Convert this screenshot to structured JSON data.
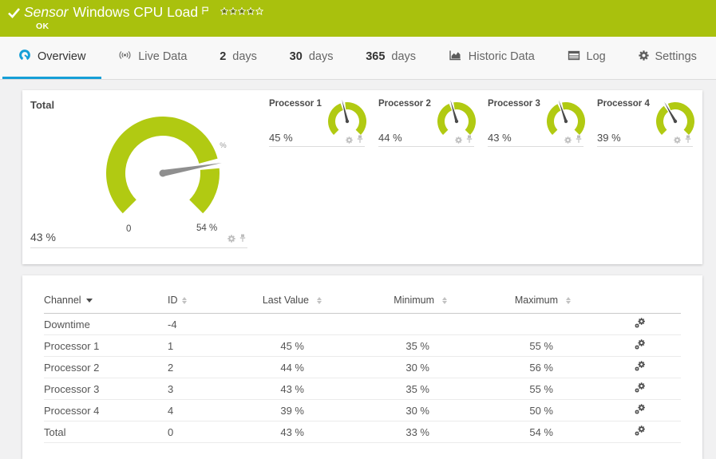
{
  "colors": {
    "header_green": "#a9c10d",
    "gauge_green": "#b1ca12",
    "accent_blue": "#169fd7",
    "needle_gray": "#8f8f8f",
    "needle_dark": "#4a4a4a"
  },
  "header": {
    "kicker": "Sensor",
    "title": "Windows CPU Load",
    "status": "OK",
    "priority_filled": 4,
    "priority_total": 5
  },
  "tabs": [
    {
      "id": "overview",
      "label": "Overview",
      "icon": "gauge",
      "active": true
    },
    {
      "id": "live-data",
      "label": "Live Data",
      "icon": "live",
      "active": false
    },
    {
      "id": "2-days",
      "prefix": "2",
      "label": "days",
      "active": false
    },
    {
      "id": "30-days",
      "prefix": "30",
      "label": "days",
      "active": false
    },
    {
      "id": "365-days",
      "prefix": "365",
      "label": "days",
      "active": false
    },
    {
      "id": "historic-data",
      "label": "Historic Data",
      "icon": "chart-area",
      "active": false
    },
    {
      "id": "log",
      "label": "Log",
      "icon": "log",
      "active": false
    },
    {
      "id": "settings",
      "label": "Settings",
      "icon": "gear",
      "active": false
    }
  ],
  "gauges": {
    "total": {
      "label": "Total",
      "value": 43,
      "value_label": "43 %",
      "scale_min": 0,
      "scale_max": 54,
      "min_label": "0",
      "max_label": "54 %",
      "unit": "%"
    },
    "processors": [
      {
        "label": "Processor 1",
        "value": 45,
        "value_label": "45 %",
        "scale_max": 100
      },
      {
        "label": "Processor 2",
        "value": 44,
        "value_label": "44 %",
        "scale_max": 100
      },
      {
        "label": "Processor 3",
        "value": 43,
        "value_label": "43 %",
        "scale_max": 100
      },
      {
        "label": "Processor 4",
        "value": 39,
        "value_label": "39 %",
        "scale_max": 100
      }
    ]
  },
  "table": {
    "columns": [
      {
        "key": "channel",
        "label": "Channel",
        "sort": "desc"
      },
      {
        "key": "id",
        "label": "ID",
        "sort": "both"
      },
      {
        "key": "last",
        "label": "Last Value",
        "sort": "both"
      },
      {
        "key": "min",
        "label": "Minimum",
        "sort": "both"
      },
      {
        "key": "max",
        "label": "Maximum",
        "sort": "both"
      },
      {
        "key": "edit",
        "label": "",
        "sort": "none"
      }
    ],
    "rows": [
      {
        "channel": "Downtime",
        "id": "-4",
        "last": "",
        "min": "",
        "max": ""
      },
      {
        "channel": "Processor 1",
        "id": "1",
        "last": "45 %",
        "min": "35 %",
        "max": "55 %"
      },
      {
        "channel": "Processor 2",
        "id": "2",
        "last": "44 %",
        "min": "30 %",
        "max": "56 %"
      },
      {
        "channel": "Processor 3",
        "id": "3",
        "last": "43 %",
        "min": "35 %",
        "max": "55 %"
      },
      {
        "channel": "Processor 4",
        "id": "4",
        "last": "39 %",
        "min": "30 %",
        "max": "50 %"
      },
      {
        "channel": "Total",
        "id": "0",
        "last": "43 %",
        "min": "33 %",
        "max": "54 %"
      }
    ]
  }
}
